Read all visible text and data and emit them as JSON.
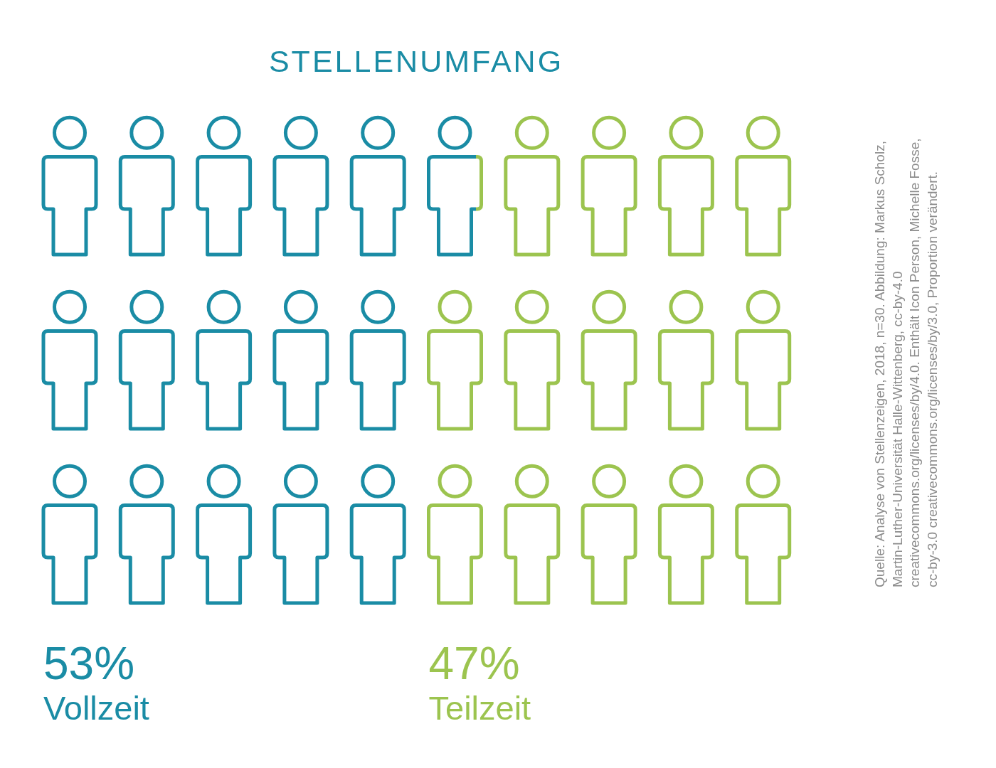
{
  "chart_data": {
    "type": "other",
    "title": "STELLENUMFANG",
    "categories": [
      "Vollzeit",
      "Teilzeit"
    ],
    "values": [
      53,
      47
    ],
    "colors": [
      "#1a8ca5",
      "#9cc44f"
    ],
    "value_labels": [
      "53%",
      "47%"
    ],
    "annotations": [
      "Quelle: Analyse von Stellenzeigen, 2018, n=30. Abbildung: Markus Scholz, Martin-Luther-Universität Halle-Wittenberg, cc-by-4.0 creativecommons.org/licenses/by/4.0. Enthält Icon Person, Michelle Fosse, cc-by-3.0 creativecommons.org/licenses/by/3.0, Proportion verändert."
    ]
  }
}
